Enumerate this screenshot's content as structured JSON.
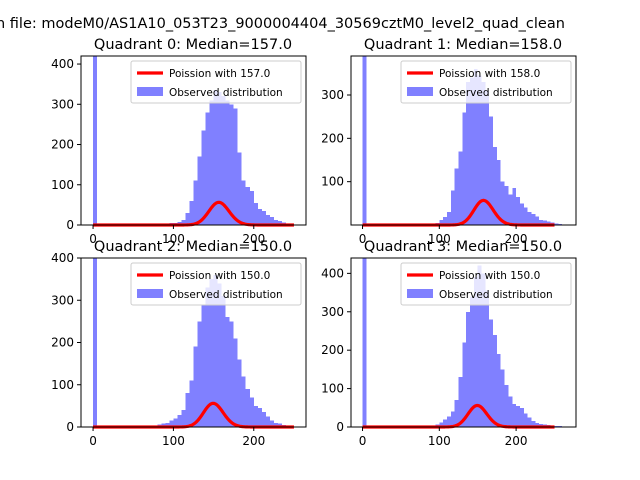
{
  "suptitle": "n file: modeM0/AS1A10_053T23_9000004404_30569cztM0_level2_quad_clean",
  "colors": {
    "hist": "#8080ff",
    "poisson": "#ff0000",
    "axis": "#000000",
    "background": "#ffffff"
  },
  "chart_data": [
    {
      "type": "bar",
      "title": "Quadrant 0: Median=157.0",
      "median": 157.0,
      "xlim": [
        -15,
        265
      ],
      "ylim": [
        0,
        420
      ],
      "xticks": [
        0,
        100,
        200
      ],
      "yticks": [
        0,
        100,
        200,
        300,
        400
      ],
      "bin_width": 5,
      "series": [
        {
          "name": "Poission with 157.0",
          "kind": "line",
          "lambda": 157.0,
          "scale": 1770
        },
        {
          "name": "Observed distribution",
          "kind": "hist",
          "bins_start": [
            0,
            75,
            80,
            85,
            90,
            95,
            100,
            105,
            110,
            115,
            120,
            125,
            130,
            135,
            140,
            145,
            150,
            155,
            160,
            165,
            170,
            175,
            180,
            185,
            190,
            195,
            200,
            205,
            210,
            215,
            220,
            225,
            230,
            235,
            240,
            245
          ],
          "values": [
            420,
            1,
            2,
            3,
            3,
            5,
            5,
            8,
            12,
            30,
            60,
            110,
            170,
            235,
            280,
            310,
            335,
            330,
            320,
            310,
            300,
            290,
            180,
            110,
            95,
            85,
            55,
            40,
            35,
            25,
            20,
            12,
            10,
            6,
            4,
            2
          ]
        }
      ]
    },
    {
      "type": "bar",
      "title": "Quadrant 1: Median=158.0",
      "median": 158.0,
      "xlim": [
        -15,
        278
      ],
      "ylim": [
        0,
        390
      ],
      "xticks": [
        0,
        100,
        200
      ],
      "yticks": [
        100,
        200,
        300
      ],
      "bin_width": 5,
      "series": [
        {
          "name": "Poission with 158.0",
          "kind": "line",
          "lambda": 158.0,
          "scale": 1790
        },
        {
          "name": "Observed distribution",
          "kind": "hist",
          "bins_start": [
            0,
            95,
            100,
            105,
            110,
            115,
            120,
            125,
            130,
            135,
            140,
            145,
            150,
            155,
            160,
            165,
            170,
            175,
            180,
            185,
            190,
            195,
            200,
            205,
            210,
            215,
            220,
            225,
            230,
            235,
            240,
            245,
            250,
            255
          ],
          "values": [
            390,
            5,
            12,
            18,
            30,
            80,
            130,
            170,
            260,
            330,
            340,
            360,
            345,
            330,
            310,
            250,
            180,
            150,
            100,
            90,
            70,
            85,
            65,
            50,
            40,
            30,
            25,
            20,
            12,
            10,
            8,
            6,
            3,
            2
          ]
        }
      ]
    },
    {
      "type": "bar",
      "title": "Quadrant 2: Median=150.0",
      "median": 150.0,
      "xlim": [
        -15,
        265
      ],
      "ylim": [
        0,
        400
      ],
      "xticks": [
        0,
        100,
        200
      ],
      "yticks": [
        0,
        100,
        200,
        300,
        400
      ],
      "bin_width": 5,
      "series": [
        {
          "name": "Poission with 150.0",
          "kind": "line",
          "lambda": 150.0,
          "scale": 1720
        },
        {
          "name": "Observed distribution",
          "kind": "hist",
          "bins_start": [
            0,
            25,
            60,
            75,
            80,
            85,
            90,
            95,
            100,
            105,
            110,
            115,
            120,
            125,
            130,
            135,
            140,
            145,
            150,
            155,
            160,
            165,
            170,
            175,
            180,
            185,
            190,
            195,
            200,
            205,
            210,
            215,
            220,
            225,
            230,
            235,
            240
          ],
          "values": [
            400,
            2,
            2,
            4,
            6,
            8,
            10,
            15,
            20,
            28,
            40,
            80,
            110,
            190,
            250,
            290,
            330,
            350,
            360,
            340,
            310,
            260,
            250,
            210,
            160,
            120,
            90,
            70,
            50,
            45,
            35,
            25,
            15,
            10,
            8,
            5,
            3
          ]
        }
      ]
    },
    {
      "type": "bar",
      "title": "Quadrant 3: Median=150.0",
      "median": 150.0,
      "xlim": [
        -15,
        278
      ],
      "ylim": [
        0,
        440
      ],
      "xticks": [
        0,
        100,
        200
      ],
      "yticks": [
        0,
        100,
        200,
        300,
        400
      ],
      "bin_width": 5,
      "series": [
        {
          "name": "Poission with 150.0",
          "kind": "line",
          "lambda": 150.0,
          "scale": 1720
        },
        {
          "name": "Observed distribution",
          "kind": "hist",
          "bins_start": [
            0,
            90,
            95,
            100,
            105,
            110,
            115,
            120,
            125,
            130,
            135,
            140,
            145,
            150,
            155,
            160,
            165,
            170,
            175,
            180,
            185,
            190,
            195,
            200,
            205,
            210,
            215,
            220,
            225,
            230,
            235,
            240,
            245,
            250,
            255
          ],
          "values": [
            440,
            3,
            6,
            12,
            20,
            28,
            40,
            70,
            130,
            220,
            300,
            340,
            390,
            420,
            400,
            355,
            280,
            240,
            190,
            150,
            110,
            80,
            60,
            55,
            50,
            35,
            25,
            15,
            10,
            8,
            6,
            5,
            4,
            3,
            2
          ]
        }
      ]
    }
  ]
}
